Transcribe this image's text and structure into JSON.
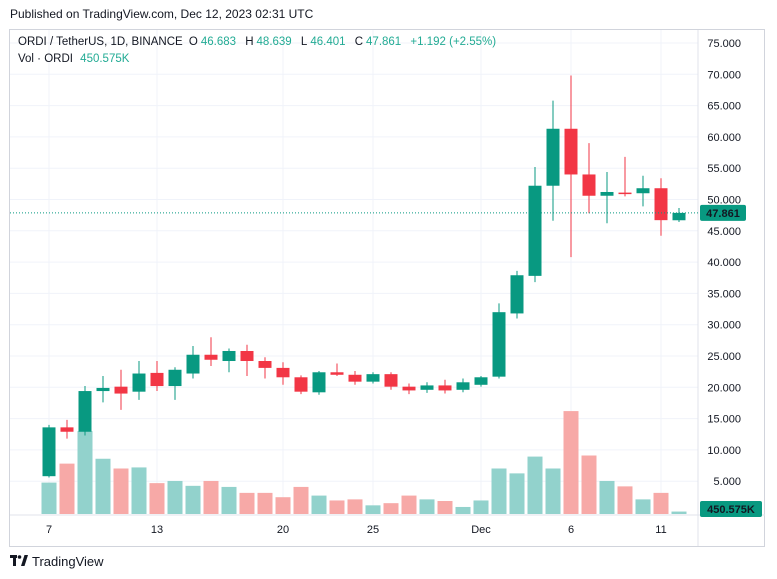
{
  "header": {
    "published": "Published on TradingView.com, Dec 12, 2023 02:31 UTC"
  },
  "legend": {
    "symbol": "ORDI / TetherUS, 1D, BINANCE",
    "open_label": "O",
    "open": "46.683",
    "high_label": "H",
    "high": "48.639",
    "low_label": "L",
    "low": "46.401",
    "close_label": "C",
    "close": "47.861",
    "change": "+1.192 (+2.55%)",
    "vol_label": "Vol · ORDI",
    "vol": "450.575K"
  },
  "footer": {
    "brand": "TradingView",
    "logo": "tv-logo-icon"
  },
  "colors": {
    "up": "#089981",
    "down": "#f23645",
    "up_vol": "#92d2cc",
    "down_vol": "#f7a9a7",
    "grid": "#f0f3fa"
  },
  "chart_data": {
    "type": "candlestick",
    "price_axis_ticks": [
      "75.000",
      "70.000",
      "65.000",
      "60.000",
      "55.000",
      "50.000",
      "45.000",
      "40.000",
      "35.000",
      "30.000",
      "25.000",
      "20.000",
      "15.000",
      "10.000",
      "5.000"
    ],
    "ylim": [
      0,
      77
    ],
    "x_tick_labels": [
      {
        "index": 0,
        "label": "7"
      },
      {
        "index": 6,
        "label": "13"
      },
      {
        "index": 13,
        "label": "20"
      },
      {
        "index": 18,
        "label": "25"
      },
      {
        "index": 24,
        "label": "Dec"
      },
      {
        "index": 29,
        "label": "6"
      },
      {
        "index": 34,
        "label": "11"
      }
    ],
    "last_price": "47.861",
    "last_volume": "450.575K",
    "candles": [
      {
        "o": 5.8,
        "h": 14.0,
        "l": 5.6,
        "c": 13.6
      },
      {
        "o": 13.6,
        "h": 14.8,
        "l": 11.8,
        "c": 12.9
      },
      {
        "o": 12.9,
        "h": 20.2,
        "l": 12.3,
        "c": 19.4
      },
      {
        "o": 19.4,
        "h": 21.8,
        "l": 17.6,
        "c": 19.9
      },
      {
        "o": 20.1,
        "h": 22.8,
        "l": 16.4,
        "c": 19.0
      },
      {
        "o": 19.3,
        "h": 24.2,
        "l": 18.0,
        "c": 22.2
      },
      {
        "o": 22.3,
        "h": 24.2,
        "l": 19.4,
        "c": 20.2
      },
      {
        "o": 20.2,
        "h": 23.2,
        "l": 18.0,
        "c": 22.8
      },
      {
        "o": 22.2,
        "h": 26.6,
        "l": 21.4,
        "c": 25.2
      },
      {
        "o": 25.2,
        "h": 28.0,
        "l": 23.4,
        "c": 24.4
      },
      {
        "o": 24.2,
        "h": 26.2,
        "l": 22.4,
        "c": 25.8
      },
      {
        "o": 25.8,
        "h": 26.8,
        "l": 21.8,
        "c": 24.2
      },
      {
        "o": 24.2,
        "h": 24.8,
        "l": 21.4,
        "c": 23.1
      },
      {
        "o": 23.1,
        "h": 24.0,
        "l": 20.4,
        "c": 21.6
      },
      {
        "o": 21.6,
        "h": 21.9,
        "l": 18.9,
        "c": 19.3
      },
      {
        "o": 19.2,
        "h": 22.6,
        "l": 18.8,
        "c": 22.4
      },
      {
        "o": 22.4,
        "h": 23.8,
        "l": 21.8,
        "c": 22.0
      },
      {
        "o": 22.0,
        "h": 22.6,
        "l": 20.4,
        "c": 20.9
      },
      {
        "o": 20.9,
        "h": 22.4,
        "l": 20.6,
        "c": 22.1
      },
      {
        "o": 22.1,
        "h": 22.4,
        "l": 19.6,
        "c": 20.1
      },
      {
        "o": 20.1,
        "h": 20.6,
        "l": 18.9,
        "c": 19.5
      },
      {
        "o": 19.6,
        "h": 20.8,
        "l": 19.1,
        "c": 20.3
      },
      {
        "o": 20.3,
        "h": 21.2,
        "l": 19.0,
        "c": 19.5
      },
      {
        "o": 19.6,
        "h": 21.4,
        "l": 19.2,
        "c": 20.8
      },
      {
        "o": 20.4,
        "h": 21.8,
        "l": 20.1,
        "c": 21.6
      },
      {
        "o": 21.7,
        "h": 33.4,
        "l": 21.4,
        "c": 32.0
      },
      {
        "o": 31.8,
        "h": 38.6,
        "l": 31.0,
        "c": 37.9
      },
      {
        "o": 37.8,
        "h": 55.2,
        "l": 36.8,
        "c": 52.2
      },
      {
        "o": 52.2,
        "h": 65.8,
        "l": 46.6,
        "c": 61.3
      },
      {
        "o": 61.3,
        "h": 69.8,
        "l": 40.8,
        "c": 54.0
      },
      {
        "o": 54.0,
        "h": 59.0,
        "l": 47.8,
        "c": 50.6
      },
      {
        "o": 50.6,
        "h": 54.4,
        "l": 46.2,
        "c": 51.2
      },
      {
        "o": 51.1,
        "h": 56.8,
        "l": 50.5,
        "c": 50.9
      },
      {
        "o": 51.0,
        "h": 53.8,
        "l": 48.9,
        "c": 51.8
      },
      {
        "o": 51.8,
        "h": 53.4,
        "l": 44.2,
        "c": 46.7
      },
      {
        "o": 46.683,
        "h": 48.639,
        "l": 46.401,
        "c": 47.861
      }
    ],
    "volume_scale_max": 24,
    "volumes": [
      5.8,
      9.3,
      15.3,
      10.2,
      8.4,
      8.6,
      5.7,
      6.1,
      5.2,
      6.1,
      5.0,
      3.9,
      3.9,
      3.1,
      5.0,
      3.4,
      2.5,
      2.7,
      1.6,
      2.0,
      3.4,
      2.7,
      2.4,
      1.3,
      2.5,
      8.4,
      7.5,
      10.6,
      8.4,
      19.0,
      10.8,
      6.1,
      5.1,
      2.7,
      3.9,
      0.45
    ]
  }
}
